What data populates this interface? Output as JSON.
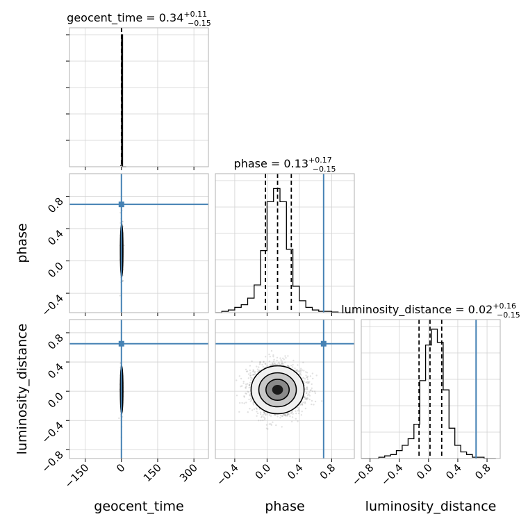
{
  "chart_data": {
    "type": "corner",
    "parameters": [
      "geocent_time",
      "phase",
      "luminosity_distance"
    ],
    "truths": {
      "geocent_time": 0,
      "phase": 0.7,
      "luminosity_distance": 0.65
    },
    "titles": [
      {
        "param": "geocent_time",
        "median": "0.34",
        "plus": "+0.11",
        "minus": "−0.15"
      },
      {
        "param": "phase",
        "median": "0.13",
        "plus": "+0.17",
        "minus": "−0.15"
      },
      {
        "param": "luminosity_distance",
        "median": "0.02",
        "plus": "+0.16",
        "minus": "−0.15"
      }
    ],
    "quantiles": {
      "geocent_time": [
        0.19,
        0.34,
        0.45
      ],
      "phase": [
        -0.02,
        0.13,
        0.3
      ],
      "luminosity_distance": [
        -0.13,
        0.02,
        0.18
      ]
    },
    "ranges": {
      "geocent_time": [
        -215,
        360
      ],
      "phase": [
        -0.64,
        1.08
      ],
      "luminosity_distance": [
        -0.92,
        0.98
      ]
    },
    "axis_ticks": {
      "geocent_time": [
        "−150",
        "0",
        "150",
        "300"
      ],
      "phase": [
        "−0.4",
        "0.0",
        "0.4",
        "0.8"
      ],
      "luminosity_distance": [
        "−0.8",
        "−0.4",
        "0.0",
        "0.4",
        "0.8"
      ]
    },
    "histograms": {
      "geocent_time": {
        "edges": [
          -5,
          0,
          5,
          20
        ],
        "counts": [
          0.01,
          1.0,
          0.0
        ]
      },
      "phase": {
        "edges": [
          -0.64,
          -0.56,
          -0.48,
          -0.4,
          -0.32,
          -0.24,
          -0.16,
          -0.08,
          0.0,
          0.08,
          0.16,
          0.24,
          0.32,
          0.4,
          0.48,
          0.56,
          0.64,
          0.72,
          0.8,
          0.88,
          0.96,
          1.04
        ],
        "counts": [
          0.0,
          0.01,
          0.02,
          0.04,
          0.06,
          0.11,
          0.21,
          0.47,
          0.84,
          0.94,
          0.84,
          0.48,
          0.2,
          0.09,
          0.04,
          0.02,
          0.01,
          0.01,
          0.005,
          0.0,
          0.0
        ]
      },
      "luminosity_distance": {
        "edges": [
          -0.92,
          -0.84,
          -0.76,
          -0.68,
          -0.6,
          -0.52,
          -0.44,
          -0.36,
          -0.28,
          -0.2,
          -0.12,
          -0.04,
          0.04,
          0.12,
          0.2,
          0.28,
          0.36,
          0.44,
          0.52,
          0.6,
          0.68,
          0.76,
          0.84,
          0.92
        ],
        "counts": [
          0.0,
          0.0,
          0.0,
          0.01,
          0.02,
          0.03,
          0.06,
          0.1,
          0.15,
          0.26,
          0.59,
          0.86,
          0.98,
          0.88,
          0.52,
          0.23,
          0.1,
          0.05,
          0.03,
          0.01,
          0.01,
          0.0,
          0.0
        ]
      }
    },
    "marginal_ylim": [
      0,
      1.0
    ],
    "grid": true
  }
}
